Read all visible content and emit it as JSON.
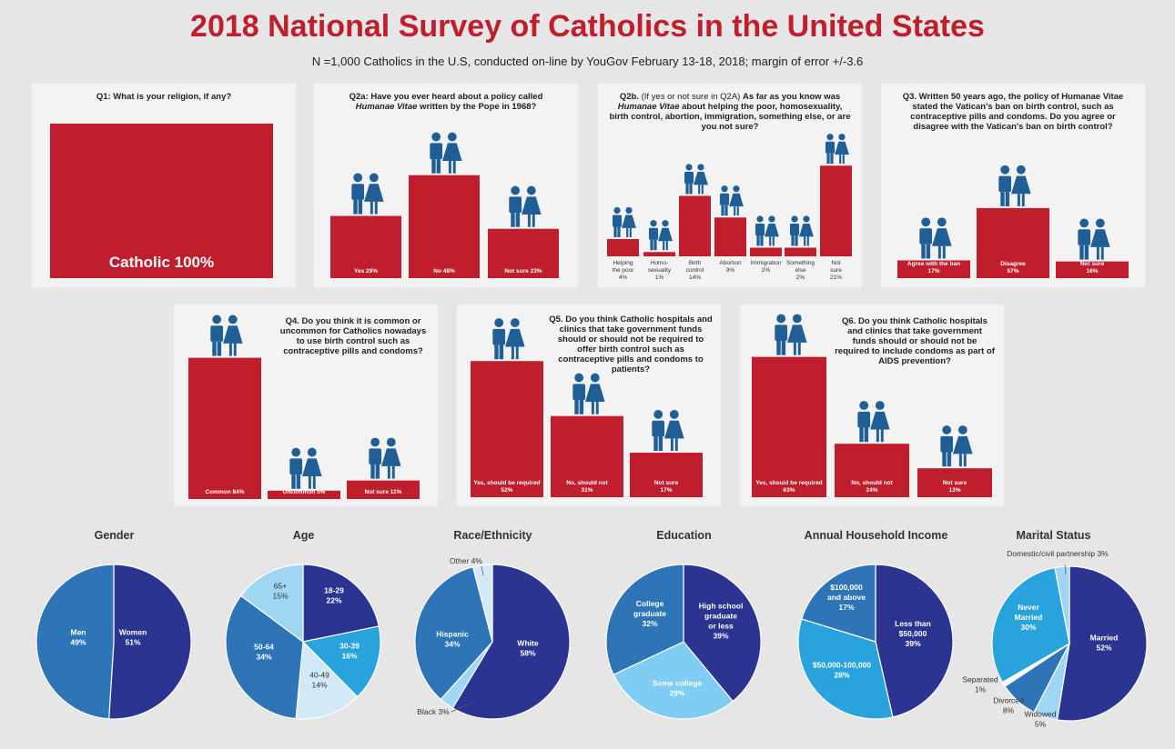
{
  "header": {
    "title": "2018 National Survey of Catholics in the United States",
    "subtitle": "N =1,000 Catholics in the U.S, conducted on-line by YouGov  February 13-18, 2018; margin of error +/-3.6"
  },
  "colors": {
    "bar": "#c01e2c",
    "icon": "#1f5f95",
    "navy": "#2b3591",
    "mid_blue": "#2e75b8",
    "sky": "#29a3dc",
    "light": "#9fd6f4",
    "pale": "#d2eaf8"
  },
  "questions": {
    "q1": "Q1: What is your religion, if any?",
    "q2a_pre": "Q2a: Have you ever heard about a policy called",
    "q2a_italic": "Humanae Vitae",
    "q2a_post": " written by the Pope in 1968?",
    "q2b_lead": "Q2b.",
    "q2b_paren": " (If yes or not sure in Q2A) ",
    "q2b_bold": " As far as you know",
    "q2b_was": "was ",
    "q2b_italic": "Humanae Vitae",
    "q2b_rest": " about helping the poor, homosexuality, birth control, abortion, immigration, something else, or are you not sure?",
    "q3": "Q3.  Written 50 years ago, the policy of Humanae Vitae stated the Vatican's ban on birth control, such as contraceptive pills and condoms.  Do you agree or disagree with the Vatican's ban on birth control?",
    "q4": "Q4.  Do you think it is common or uncommon for Catholics nowadays to use birth control such as contraceptive pills and condoms?",
    "q5": "Q5. Do you think Catholic hospitals and clinics that take government funds should or should not be required to offer birth control such as contraceptive pills and condoms to patients?",
    "q6": "Q6. Do you think Catholic hospitals and clinics that take government funds should or should not be required to include condoms as part of AIDS prevention?"
  },
  "chart_data": [
    {
      "id": "q1",
      "type": "bar",
      "categories": [
        "Catholic"
      ],
      "values": [
        100
      ],
      "labels": [
        "Catholic 100%"
      ]
    },
    {
      "id": "q2a",
      "type": "bar",
      "categories": [
        "Yes",
        "No",
        "Not sure"
      ],
      "values": [
        29,
        48,
        23
      ],
      "labels": [
        "Yes 29%",
        "No 48%",
        "Not sure 23%"
      ]
    },
    {
      "id": "q2b",
      "type": "bar",
      "categories": [
        "Helping the poor",
        "Homo-sexuality",
        "Birth control",
        "Abortion",
        "Immigration",
        "Something else",
        "Not sure"
      ],
      "values": [
        4,
        1,
        14,
        9,
        2,
        2,
        21
      ],
      "labels": [
        [
          "Helping",
          "the poor",
          "4%"
        ],
        [
          "Homo-",
          "sexuality",
          "1%"
        ],
        [
          "Birth",
          "control",
          "14%"
        ],
        [
          "Abortion",
          "9%"
        ],
        [
          "Immigration",
          "2%"
        ],
        [
          "Something",
          "else",
          "2%"
        ],
        [
          "Not",
          "sure",
          "21%"
        ]
      ]
    },
    {
      "id": "q3",
      "type": "bar",
      "categories": [
        "Agree with the ban",
        "Disagree",
        "Not sure"
      ],
      "values": [
        17,
        67,
        16
      ],
      "labels": [
        [
          "Agree with the ban",
          "17%"
        ],
        [
          "Disagree",
          "67%"
        ],
        [
          "Not sure",
          "16%"
        ]
      ]
    },
    {
      "id": "q4",
      "type": "bar",
      "categories": [
        "Common",
        "Uncommon",
        "Not sure"
      ],
      "values": [
        84,
        5,
        11
      ],
      "labels": [
        "Common 84%",
        "Uncommon 5%",
        "Not sure 11%"
      ]
    },
    {
      "id": "q5",
      "type": "bar",
      "categories": [
        "Yes, should be required",
        "No, should not",
        "Not sure"
      ],
      "values": [
        52,
        31,
        17
      ],
      "labels": [
        [
          "Yes, should be required",
          "52%"
        ],
        [
          "No, should not",
          "31%"
        ],
        [
          "Not sure",
          "17%"
        ]
      ]
    },
    {
      "id": "q6",
      "type": "bar",
      "categories": [
        "Yes, should be required",
        "No, should not",
        "Not sure"
      ],
      "values": [
        63,
        24,
        13
      ],
      "labels": [
        [
          "Yes, should be required",
          "63%"
        ],
        [
          "No, should not",
          "24%"
        ],
        [
          "Not sure",
          "13%"
        ]
      ]
    },
    {
      "id": "gender",
      "type": "pie",
      "title": "Gender",
      "slices": [
        {
          "label": [
            "Women",
            "51%"
          ],
          "value": 51,
          "color": "#2b3591"
        },
        {
          "label": [
            "Men",
            "49%"
          ],
          "value": 49,
          "color": "#2e75b8"
        }
      ]
    },
    {
      "id": "age",
      "type": "pie",
      "title": "Age",
      "slices": [
        {
          "label": [
            "18-29",
            "22%"
          ],
          "value": 22,
          "color": "#2b3591"
        },
        {
          "label": [
            "30-39",
            "16%"
          ],
          "value": 16,
          "color": "#29a3dc"
        },
        {
          "label": [
            "40-49",
            "14%"
          ],
          "value": 14,
          "color": "#d2eaf8"
        },
        {
          "label": [
            "50-64",
            "34%"
          ],
          "value": 34,
          "color": "#2e75b8"
        },
        {
          "label": [
            "65+",
            "15%"
          ],
          "value": 15,
          "color": "#9fd6f4"
        }
      ]
    },
    {
      "id": "race",
      "type": "pie",
      "title": "Race/Ethnicity",
      "slices": [
        {
          "label": [
            "White",
            "58%"
          ],
          "value": 58,
          "color": "#2b3591"
        },
        {
          "label": [
            "Black 3%"
          ],
          "value": 3,
          "color": "#9fd6f4"
        },
        {
          "label": [
            "Hispanic",
            "34%"
          ],
          "value": 34,
          "color": "#2e75b8"
        },
        {
          "label": [
            "Other 4%"
          ],
          "value": 4,
          "color": "#d2eaf8"
        }
      ]
    },
    {
      "id": "education",
      "type": "pie",
      "title": "Education",
      "slices": [
        {
          "label": [
            "High school",
            "graduate",
            "or less",
            "39%"
          ],
          "value": 39,
          "color": "#2b3591"
        },
        {
          "label": [
            "Some college",
            "29%"
          ],
          "value": 29,
          "color": "#7fcdf3"
        },
        {
          "label": [
            "College",
            "graduate",
            "32%"
          ],
          "value": 32,
          "color": "#2e75b8"
        }
      ]
    },
    {
      "id": "income",
      "type": "pie",
      "title": "Annual Household Income",
      "slices": [
        {
          "label": [
            "Less than",
            "$50,000",
            "39%"
          ],
          "value": 39,
          "color": "#2b3591"
        },
        {
          "label": [
            "$50,000-100,000",
            "28%"
          ],
          "value": 28,
          "color": "#29a3dc"
        },
        {
          "label": [
            "$100,000",
            "and above",
            "17%"
          ],
          "value": 17,
          "color": "#2e75b8"
        }
      ]
    },
    {
      "id": "marital",
      "type": "pie",
      "title": "Marital Status",
      "slices": [
        {
          "label": [
            "Married",
            "52%"
          ],
          "value": 52,
          "color": "#2b3591"
        },
        {
          "label": [
            "Widowed",
            "5%"
          ],
          "value": 5,
          "color": "#9fd6f4"
        },
        {
          "label": [
            "Divorced",
            "8%"
          ],
          "value": 8,
          "color": "#2e75b8"
        },
        {
          "label": [
            "Separated",
            "1%"
          ],
          "value": 1,
          "color": "#ffffff"
        },
        {
          "label": [
            "Never",
            "Married",
            "30%"
          ],
          "value": 30,
          "color": "#29a3dc"
        },
        {
          "label": [
            "Domestic/civil partnership 3%"
          ],
          "value": 3,
          "color": "#9fd6f4"
        }
      ]
    }
  ]
}
